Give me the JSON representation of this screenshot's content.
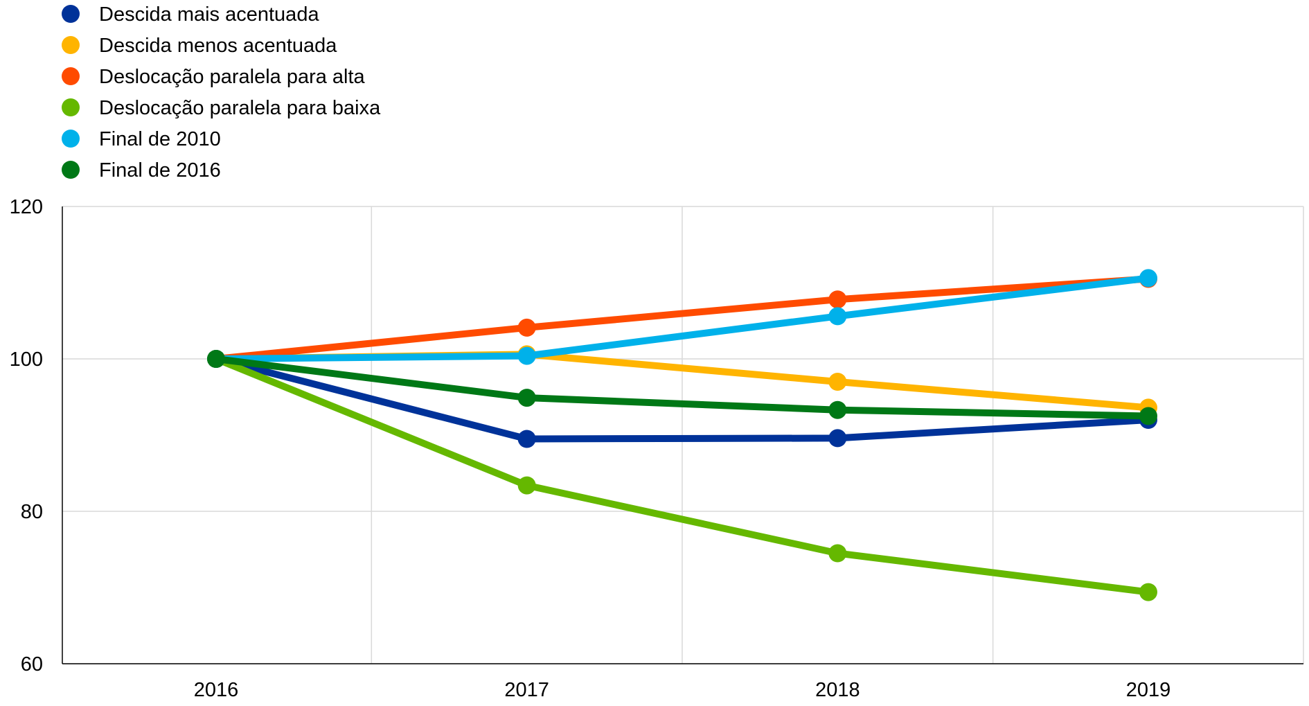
{
  "chart_data": {
    "type": "line",
    "categories": [
      "2016",
      "2017",
      "2018",
      "2019"
    ],
    "series": [
      {
        "name": "Descida mais acentuada",
        "color": "#003299",
        "values": [
          100,
          89.5,
          89.6,
          92.0
        ]
      },
      {
        "name": "Descida menos acentuada",
        "color": "#FFB400",
        "values": [
          100,
          100.6,
          97.0,
          93.6
        ]
      },
      {
        "name": "Deslocação paralela para alta",
        "color": "#FF4B00",
        "values": [
          100,
          104.1,
          107.8,
          110.5
        ]
      },
      {
        "name": "Deslocação paralela para baixa",
        "color": "#65B800",
        "values": [
          100,
          83.4,
          74.5,
          69.4
        ]
      },
      {
        "name": "Final de 2010",
        "color": "#00B1EA",
        "values": [
          100,
          100.4,
          105.6,
          110.6
        ]
      },
      {
        "name": "Final de 2016",
        "color": "#007816",
        "values": [
          100,
          94.9,
          93.3,
          92.5
        ]
      }
    ],
    "ylim": [
      60,
      120
    ],
    "yticks": [
      60,
      80,
      100,
      120
    ],
    "grid": true,
    "legend": "top-left"
  }
}
